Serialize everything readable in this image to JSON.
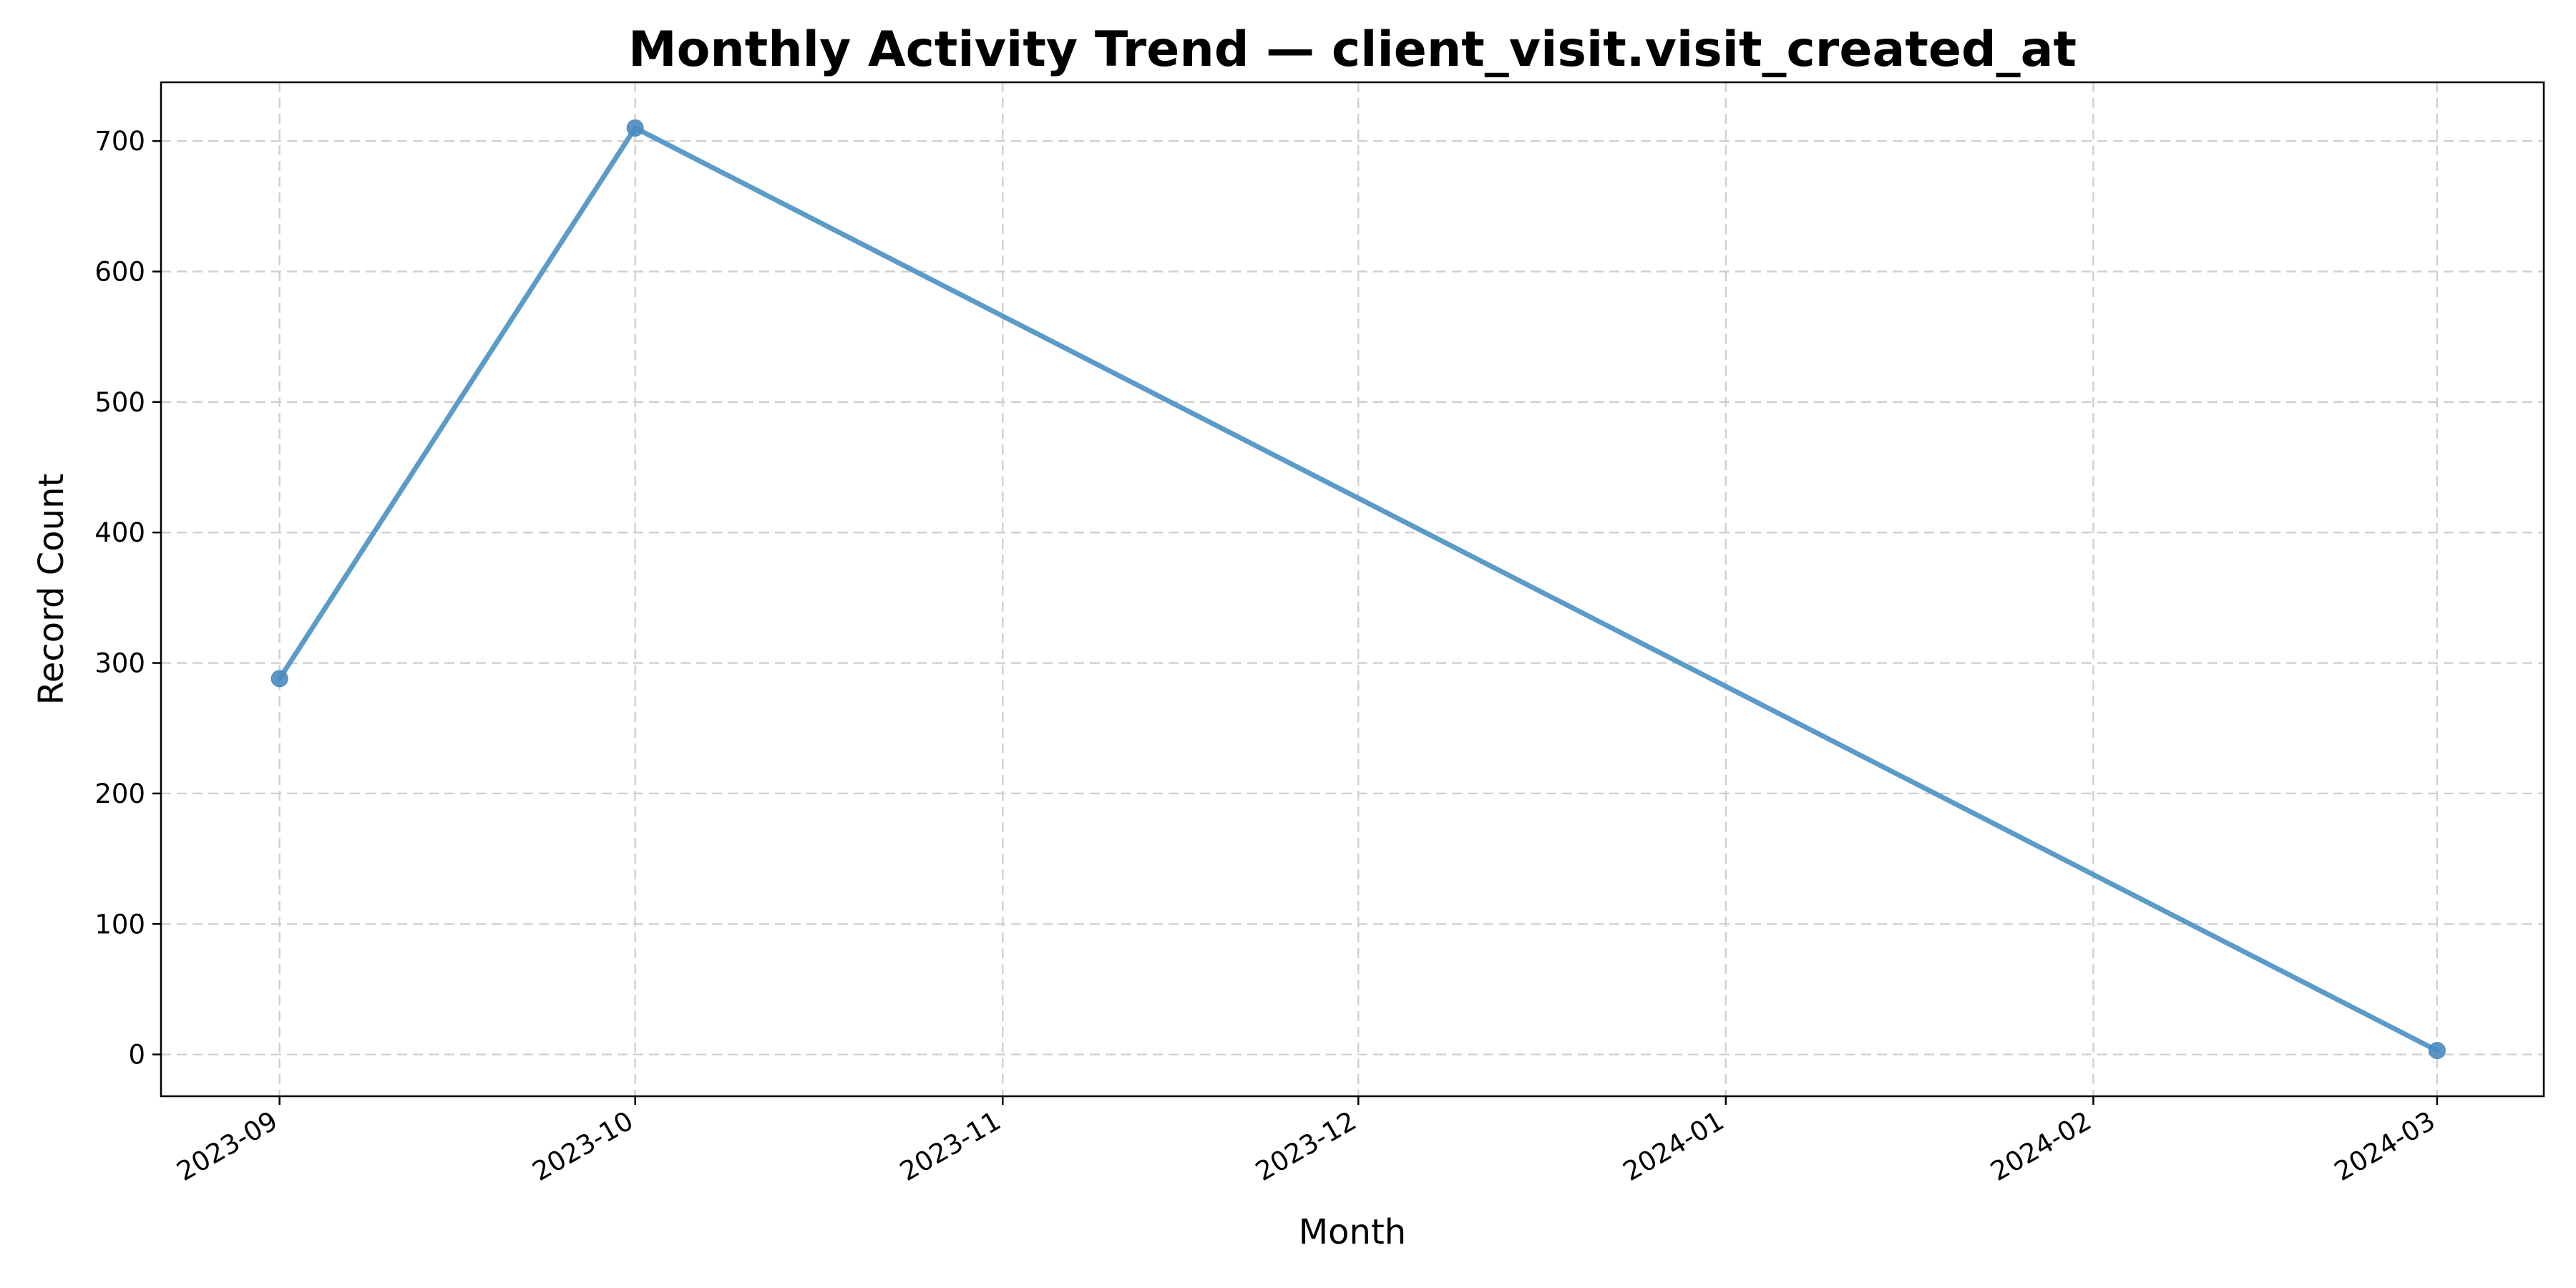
{
  "chart_data": {
    "type": "line",
    "title": "Monthly Activity Trend — client_visit.visit_created_at",
    "xlabel": "Month",
    "ylabel": "Record Count",
    "x_ticks": [
      "2023-09",
      "2023-10",
      "2023-11",
      "2023-12",
      "2024-01",
      "2024-02",
      "2024-03"
    ],
    "y_ticks": [
      0,
      100,
      200,
      300,
      400,
      500,
      600,
      700
    ],
    "ylim": [
      -32,
      745
    ],
    "xlim": [
      "2023-08-22",
      "2024-03-10"
    ],
    "grid": true,
    "colors": {
      "line": "#5b9bc8",
      "marker": "#4a8bbf"
    },
    "series": [
      {
        "x": [
          "2023-09-01",
          "2023-10-01",
          "2024-03-01"
        ],
        "values": [
          288,
          710,
          3
        ]
      }
    ]
  }
}
